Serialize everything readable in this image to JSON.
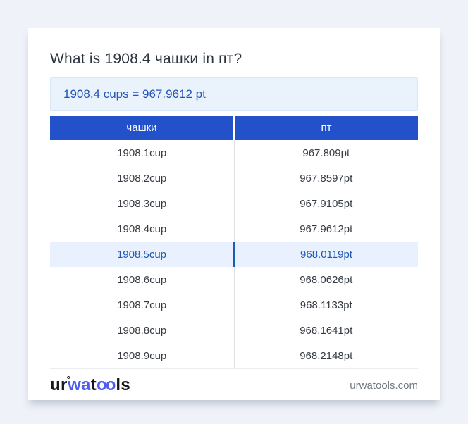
{
  "page": {
    "title": "What is 1908.4 чашки in пт?",
    "answer_text": "1908.4 cups = 967.9612 pt"
  },
  "table": {
    "headers": [
      "чашки",
      "пт"
    ],
    "rows": [
      {
        "cup": "1908.1cup",
        "pt": "967.809pt",
        "highlight": false
      },
      {
        "cup": "1908.2cup",
        "pt": "967.8597pt",
        "highlight": false
      },
      {
        "cup": "1908.3cup",
        "pt": "967.9105pt",
        "highlight": false
      },
      {
        "cup": "1908.4cup",
        "pt": "967.9612pt",
        "highlight": false
      },
      {
        "cup": "1908.5cup",
        "pt": "968.0119pt",
        "highlight": true
      },
      {
        "cup": "1908.6cup",
        "pt": "968.0626pt",
        "highlight": false
      },
      {
        "cup": "1908.7cup",
        "pt": "968.1133pt",
        "highlight": false
      },
      {
        "cup": "1908.8cup",
        "pt": "968.1641pt",
        "highlight": false
      },
      {
        "cup": "1908.9cup",
        "pt": "968.2148pt",
        "highlight": false
      }
    ]
  },
  "footer": {
    "logo": {
      "part_ur": "ur",
      "ring": "°",
      "part_wa": "wa",
      "part_t": "t",
      "part_oo": "oo",
      "part_ls": "ls"
    },
    "domain": "urwatools.com"
  },
  "colors": {
    "page_background": "#eff2f8",
    "card_background": "#ffffff",
    "table_header_blue": "#2351c9",
    "answer_box_background": "#eaf2fb",
    "answer_text_blue": "#2456b8",
    "highlight_row_background": "#e8f1fd",
    "highlight_text_blue": "#1f58b5",
    "logo_blue": "#4d5ef1",
    "body_text": "#363b44",
    "domain_text_gray": "#737882"
  }
}
